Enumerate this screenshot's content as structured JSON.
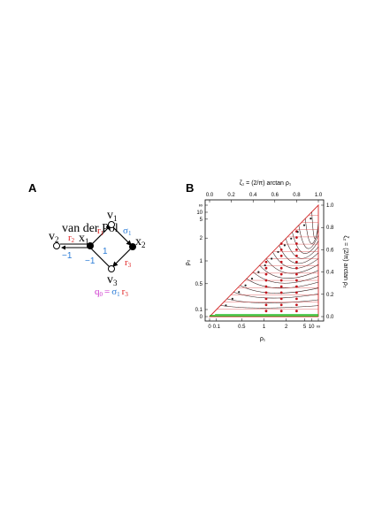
{
  "panel_a": {
    "label": "A",
    "title": "van der Pol",
    "nodes": {
      "v1": {
        "name": "v",
        "sub": "1"
      },
      "v2": {
        "name": "v",
        "sub": "2"
      },
      "v3": {
        "name": "v",
        "sub": "3"
      },
      "x1": {
        "name": "x",
        "sub": "1"
      },
      "x2": {
        "name": "x",
        "sub": "2"
      }
    },
    "edge_labels": {
      "r1": {
        "name": "r",
        "sub": "1"
      },
      "r2": {
        "name": "r",
        "sub": "2"
      },
      "r3": {
        "name": "r",
        "sub": "3"
      },
      "sigma1": {
        "name": "σ",
        "sub": "1"
      },
      "one": "1",
      "minus_one_left": "−1",
      "minus_one_bottom": "−1"
    },
    "equation": {
      "q": "q",
      "q_sub": "0",
      "eq": "=",
      "sigma": "σ",
      "sigma_sub": "1",
      "r": "r",
      "r_sub": "3"
    },
    "colors": {
      "red": "#e02020",
      "blue": "#2a7bd6",
      "magenta": "#cc33cc",
      "black": "#000000"
    }
  },
  "panel_b": {
    "label": "B",
    "top_axis_label": "ζ₁ = (2/π) arctan ρ₁",
    "right_axis_label": "ζ₂ = (2/π) arctan ρ₂",
    "bottom_axis_label": "ρ₁",
    "left_axis_label": "ρ₂",
    "colors": {
      "triangle": "#d42a2a",
      "trajectory": "#222222",
      "points": "#c4141c",
      "bottom": "#22bb22"
    }
  },
  "chart_data": {
    "type": "line",
    "x_axis": {
      "label": "ρ₁",
      "ticks": [
        "0",
        "0.1",
        "0.5",
        "1",
        "2",
        "5",
        "10",
        "∞"
      ]
    },
    "y_axis": {
      "label": "ρ₂",
      "ticks": [
        "0",
        "0.1",
        "0.5",
        "1",
        "2",
        "5",
        "10",
        "∞"
      ]
    },
    "top_axis": {
      "label": "ζ₁ = (2/π) arctan ρ₁",
      "range": [
        0,
        1
      ],
      "ticks": [
        "0.0",
        "0.2",
        "0.4",
        "0.6",
        "0.8",
        "1.0"
      ]
    },
    "right_axis": {
      "label": "ζ₂ = (2/π) arctan ρ₂",
      "range": [
        0,
        1
      ],
      "ticks": [
        "0.0",
        "0.2",
        "0.4",
        "0.6",
        "0.8",
        "1.0"
      ]
    },
    "region": "triangle ζ₂ ≤ ζ₁",
    "trajectory_start_zeta1": [
      0.1,
      0.16,
      0.22,
      0.28,
      0.34,
      0.4,
      0.46,
      0.52,
      0.58,
      0.64,
      0.7,
      0.76,
      0.82,
      0.88,
      0.94
    ],
    "fixed_point_columns_zeta1": [
      0.52,
      0.66,
      0.8
    ],
    "grid": false
  }
}
